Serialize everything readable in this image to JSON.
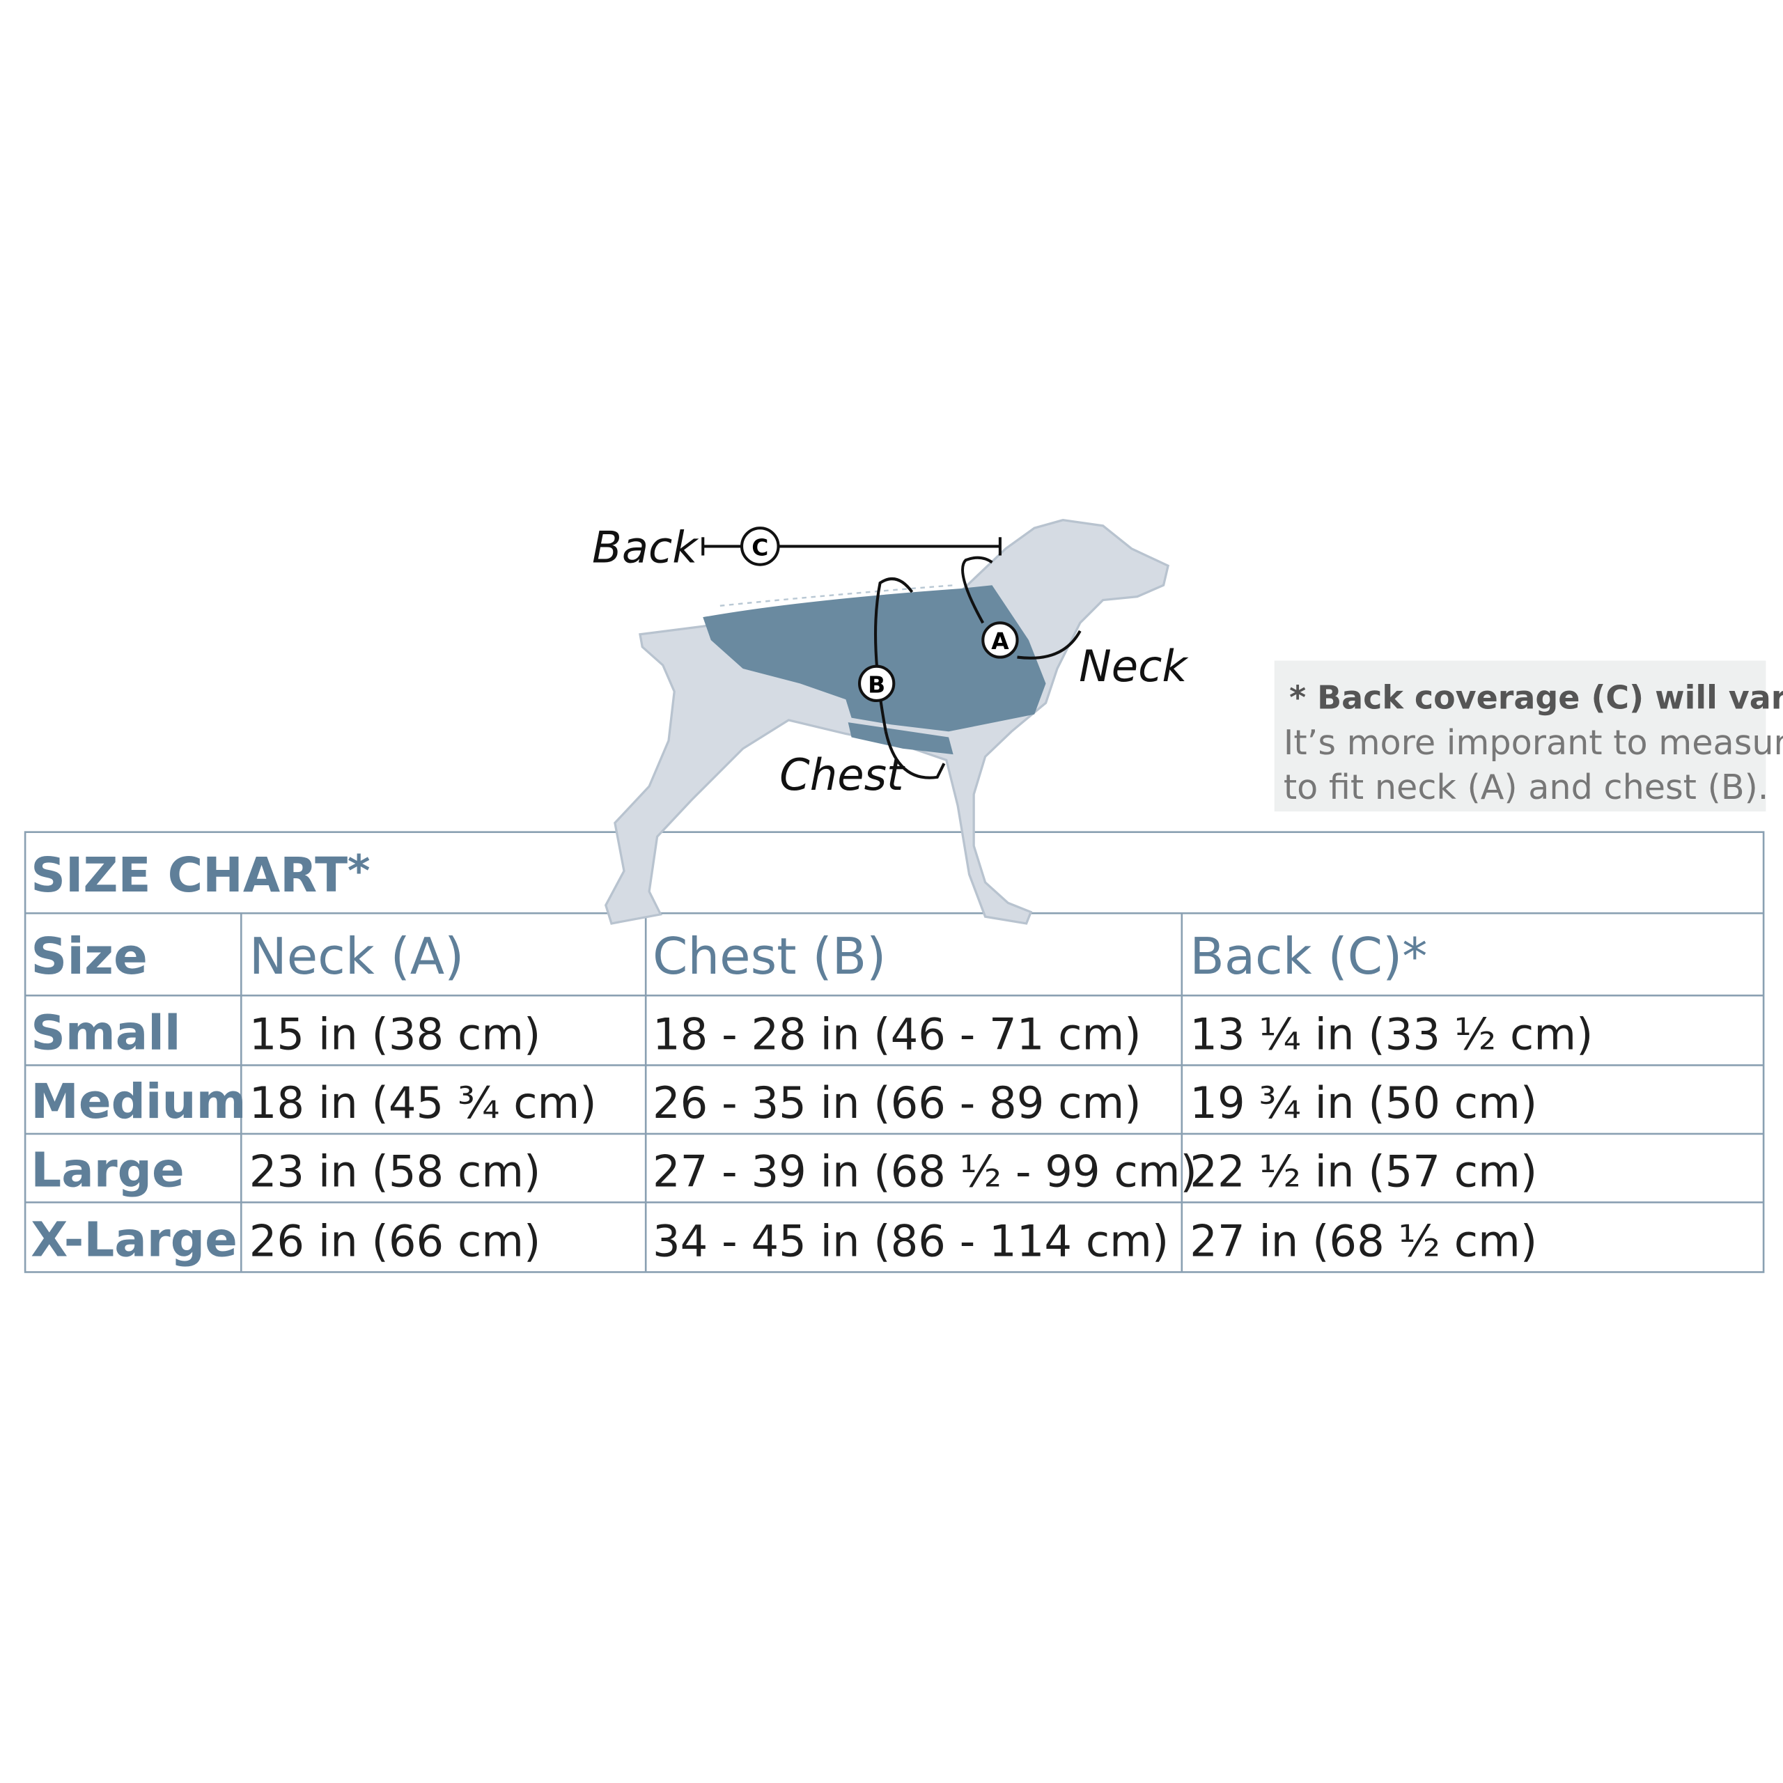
{
  "diagram": {
    "back_label": "Back",
    "neck_label": "Neck",
    "chest_label": "Chest",
    "markers": [
      "A",
      "B",
      "C"
    ]
  },
  "note": {
    "title": "* Back coverage (C) will vary.",
    "lines": [
      "It’s more imporant to measure",
      "to fit neck (A) and chest (B)."
    ]
  },
  "table": {
    "title": "SIZE CHART",
    "title_mark": "*",
    "headers": [
      "Size",
      "Neck (A)",
      "Chest (B)",
      "Back (C)*"
    ],
    "rows": [
      [
        "Small",
        "15 in  (38 cm)",
        "18 - 28 in  (46 - 71 cm)",
        "13 ¼ in  (33 ½ cm)"
      ],
      [
        "Medium",
        "18 in  (45 ¾ cm)",
        "26 - 35 in  (66 - 89 cm)",
        "19 ¾ in  (50 cm)"
      ],
      [
        "Large",
        "23 in  (58 cm)",
        "27 - 39 in  (68 ½ - 99 cm)",
        "22 ½ in  (57 cm)"
      ],
      [
        "X-Large",
        "26 in  (66 cm)",
        "34 - 45 in  (86 - 114 cm)",
        "27 in  (68 ½ cm)"
      ]
    ]
  }
}
